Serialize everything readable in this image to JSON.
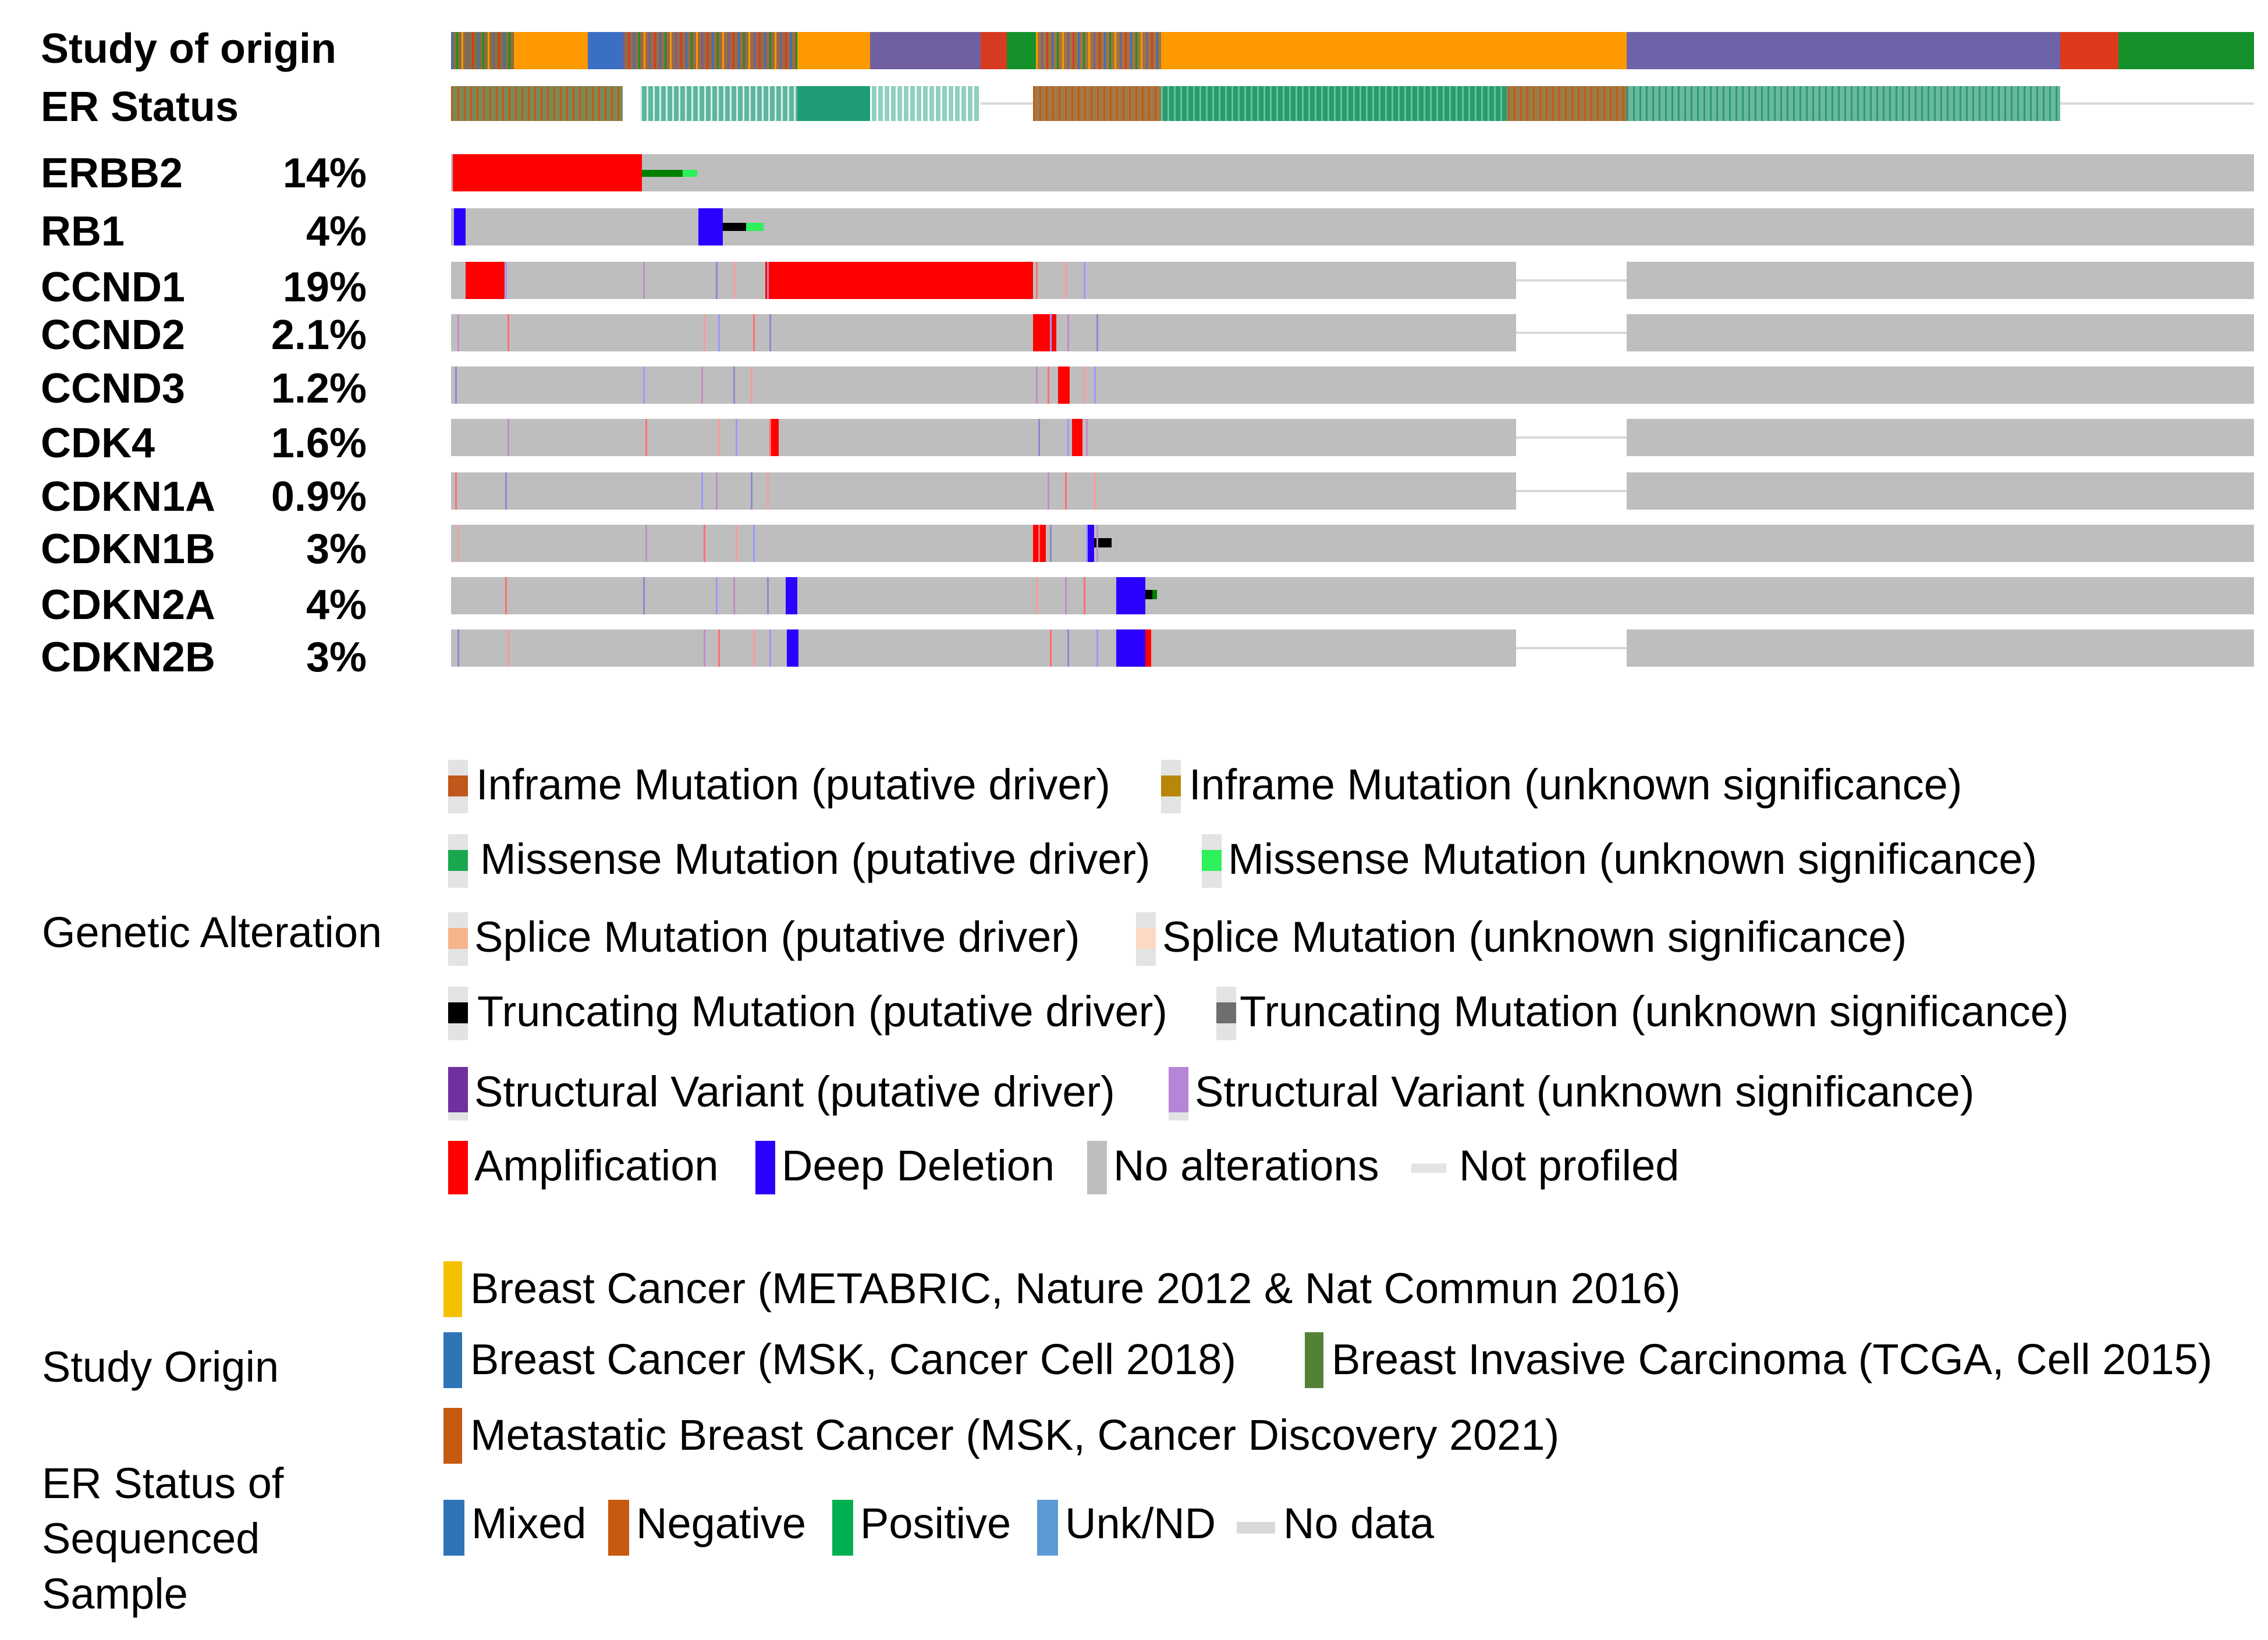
{
  "chart_data": {
    "type": "oncoprint",
    "title": "",
    "annotation_tracks": [
      {
        "label": "Study of origin"
      },
      {
        "label": "ER Status"
      }
    ],
    "genes": [
      {
        "name": "ERBB2",
        "altered": "14%"
      },
      {
        "name": "RB1",
        "altered": "4%"
      },
      {
        "name": "CCND1",
        "altered": "19%"
      },
      {
        "name": "CCND2",
        "altered": "2.1%"
      },
      {
        "name": "CCND3",
        "altered": "1.2%"
      },
      {
        "name": "CDK4",
        "altered": "1.6%"
      },
      {
        "name": "CDKN1A",
        "altered": "0.9%"
      },
      {
        "name": "CDKN1B",
        "altered": "3%"
      },
      {
        "name": "CDKN2A",
        "altered": "4%"
      },
      {
        "name": "CDKN2B",
        "altered": "3%"
      }
    ],
    "legend": {
      "genetic_alteration": {
        "title": "Genetic Alteration",
        "items": [
          {
            "label": "Inframe Mutation (putative driver)",
            "color": "#c0571b"
          },
          {
            "label": "Inframe Mutation (unknown significance)",
            "color": "#b8860b"
          },
          {
            "label": "Missense Mutation (putative driver)",
            "color": "#1aa84f"
          },
          {
            "label": "Missense Mutation (unknown significance)",
            "color": "#2ef05a"
          },
          {
            "label": "Splice Mutation (putative driver)",
            "color": "#f6b48b"
          },
          {
            "label": "Splice Mutation (unknown significance)",
            "color": "#fbd9c2"
          },
          {
            "label": "Truncating Mutation (putative driver)",
            "color": "#000000"
          },
          {
            "label": "Truncating Mutation (unknown significance)",
            "color": "#6e6e6e"
          },
          {
            "label": "Structural Variant (putative driver)",
            "color": "#7030a0"
          },
          {
            "label": "Structural Variant (unknown significance)",
            "color": "#b785d8"
          },
          {
            "label": "Amplification",
            "color": "#ff0000"
          },
          {
            "label": "Deep Deletion",
            "color": "#2b00ff"
          },
          {
            "label": "No alterations",
            "color": "#bebebe"
          },
          {
            "label": "Not profiled",
            "color": "#e3e3e3"
          }
        ]
      },
      "study_origin": {
        "title": "Study Origin",
        "items": [
          {
            "label": "Breast Cancer (METABRIC, Nature 2012 & Nat Commun 2016)",
            "color": "#f5c000"
          },
          {
            "label": "Breast Cancer (MSK, Cancer Cell 2018)",
            "color": "#2e75b6"
          },
          {
            "label": "Breast Invasive Carcinoma (TCGA, Cell 2015)",
            "color": "#548235"
          },
          {
            "label": "Metastatic Breast Cancer (MSK, Cancer Discovery 2021)",
            "color": "#c55a11"
          }
        ]
      },
      "er_status": {
        "title": "ER Status of Sequenced Sample",
        "items": [
          {
            "label": "Mixed",
            "color": "#2e75b6"
          },
          {
            "label": "Negative",
            "color": "#c55a11"
          },
          {
            "label": "Positive",
            "color": "#00b050"
          },
          {
            "label": "Unk/ND",
            "color": "#5b9bd5"
          },
          {
            "label": "No data",
            "color": "#d9d9d9"
          }
        ]
      }
    }
  }
}
